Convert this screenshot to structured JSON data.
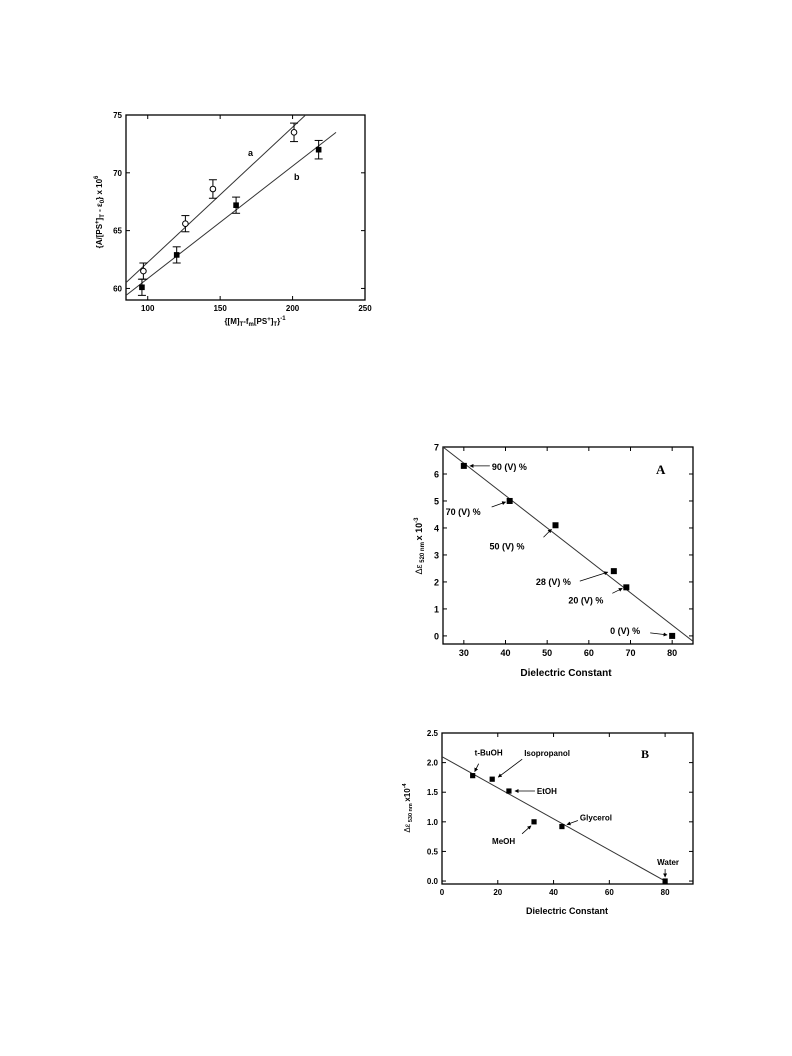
{
  "chart_data": [
    {
      "type": "scatter",
      "xlabel": "{[M]T-fm[PS+]T}-1",
      "ylabel": "{A/[PS+]T - ε0} x 10^6",
      "xlim": [
        85,
        250
      ],
      "ylim": [
        59,
        75
      ],
      "xticks": [
        "100",
        "150",
        "200",
        "250"
      ],
      "yticks": [
        "60",
        "65",
        "70",
        "75"
      ],
      "series": [
        {
          "name": "a",
          "marker": "open-circle",
          "points": [
            [
              97,
              61.5
            ],
            [
              126,
              65.6
            ],
            [
              145,
              68.6
            ],
            [
              201,
              73.5
            ]
          ],
          "error": [
            0.7,
            0.7,
            0.8,
            0.8
          ],
          "fit": [
            [
              85,
              60.5
            ],
            [
              209,
              75
            ]
          ]
        },
        {
          "name": "b",
          "marker": "filled-square",
          "points": [
            [
              96,
              60.1
            ],
            [
              120,
              62.9
            ],
            [
              161,
              67.2
            ],
            [
              218,
              72.0
            ]
          ],
          "error": [
            0.7,
            0.7,
            0.7,
            0.8
          ],
          "fit": [
            [
              85,
              59.4
            ],
            [
              230,
              73.5
            ]
          ]
        }
      ],
      "grid": false
    },
    {
      "type": "scatter",
      "panel_label": "A",
      "xlabel": "Dielectric Constant",
      "ylabel": "Δε 520 nm x 10^-3",
      "xlim": [
        25,
        85
      ],
      "ylim": [
        -0.3,
        7
      ],
      "xticks": [
        "30",
        "40",
        "50",
        "60",
        "70",
        "80"
      ],
      "yticks": [
        "0",
        "1",
        "2",
        "3",
        "4",
        "5",
        "6",
        "7"
      ],
      "points": [
        [
          30,
          6.3
        ],
        [
          41,
          5.0
        ],
        [
          52,
          4.1
        ],
        [
          66,
          2.4
        ],
        [
          69,
          1.8
        ],
        [
          80,
          0.0
        ]
      ],
      "fit": [
        [
          25,
          7.0
        ],
        [
          85,
          -0.2
        ]
      ],
      "annotations": [
        "90 (V) %",
        "70 (V) %",
        "50 (V) %",
        "28 (V) %",
        "20 (V) %",
        "0 (V) %"
      ],
      "grid": false
    },
    {
      "type": "scatter",
      "panel_label": "B",
      "xlabel": "Dielectric Constant",
      "ylabel": "Δε 530 nm x10^-4",
      "xlim": [
        0,
        90
      ],
      "ylim": [
        -0.05,
        2.5
      ],
      "xticks": [
        "0",
        "20",
        "40",
        "60",
        "80"
      ],
      "yticks": [
        "0.0",
        "0.5",
        "1.0",
        "1.5",
        "2.0",
        "2.5"
      ],
      "points": [
        [
          11,
          1.78
        ],
        [
          18,
          1.72
        ],
        [
          24,
          1.52
        ],
        [
          33,
          1.0
        ],
        [
          43,
          0.92
        ],
        [
          80,
          0.0
        ]
      ],
      "fit": [
        [
          0,
          2.1
        ],
        [
          80,
          0.0
        ]
      ],
      "annotations": [
        "t-BuOH",
        "Isopropanol",
        "EtOH",
        "MeOH",
        "Glycerol",
        "Water"
      ],
      "grid": false
    }
  ]
}
